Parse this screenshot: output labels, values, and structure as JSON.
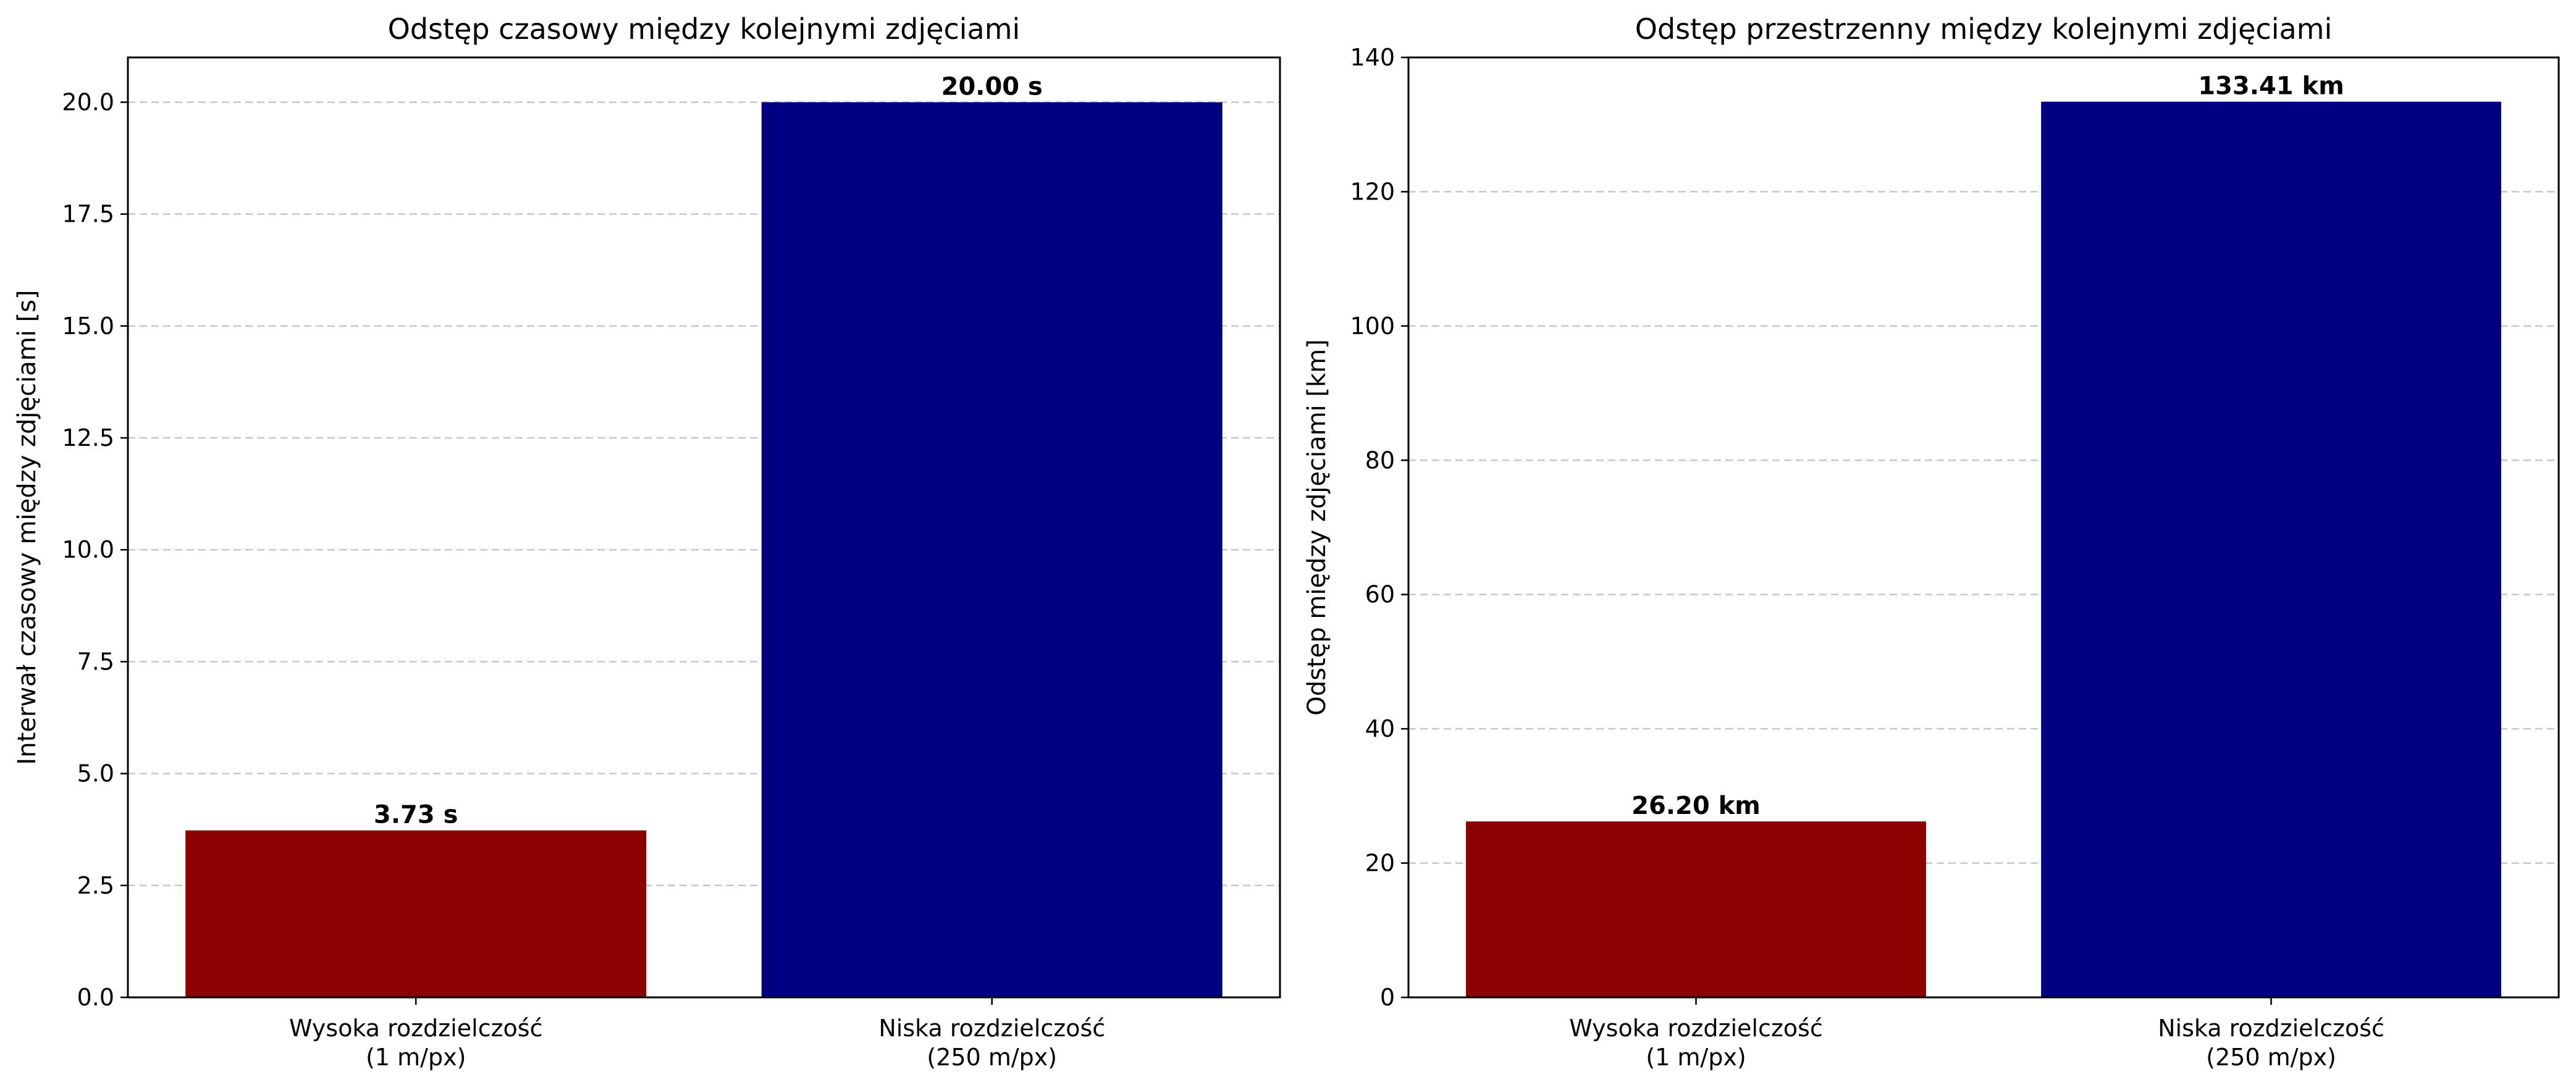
{
  "chart_data": [
    {
      "type": "bar",
      "title": "Odstęp czasowy między kolejnymi zdjęciami",
      "xlabel": "",
      "ylabel": "Interwał czasowy między zdjęciami [s]",
      "categories": [
        [
          "Wysoka rozdzielczość",
          "(1 m/px)"
        ],
        [
          "Niska rozdzielczość",
          "(250 m/px)"
        ]
      ],
      "values": [
        3.73,
        20.0
      ],
      "value_labels": [
        "3.73 s",
        "20.00 s"
      ],
      "colors": [
        "#8b0000",
        "#000080"
      ],
      "ylim": [
        0,
        21
      ],
      "yticks": [
        0,
        2.5,
        5,
        7.5,
        10,
        12.5,
        15,
        17.5,
        20
      ],
      "ytick_labels": [
        "0.0",
        "2.5",
        "5.0",
        "7.5",
        "10.0",
        "12.5",
        "15.0",
        "17.5",
        "20.0"
      ],
      "grid": "y-dashed"
    },
    {
      "type": "bar",
      "title": "Odstęp przestrzenny między kolejnymi zdjęciami",
      "xlabel": "",
      "ylabel": "Odstęp między zdjęciami [km]",
      "categories": [
        [
          "Wysoka rozdzielczość",
          "(1 m/px)"
        ],
        [
          "Niska rozdzielczość",
          "(250 m/px)"
        ]
      ],
      "values": [
        26.2,
        133.41
      ],
      "value_labels": [
        "26.20 km",
        "133.41 km"
      ],
      "colors": [
        "#8b0000",
        "#000080"
      ],
      "ylim": [
        0,
        140
      ],
      "yticks": [
        0,
        20,
        40,
        60,
        80,
        100,
        120,
        140
      ],
      "ytick_labels": [
        "0",
        "20",
        "40",
        "60",
        "80",
        "100",
        "120",
        "140"
      ],
      "grid": "y-dashed"
    }
  ]
}
